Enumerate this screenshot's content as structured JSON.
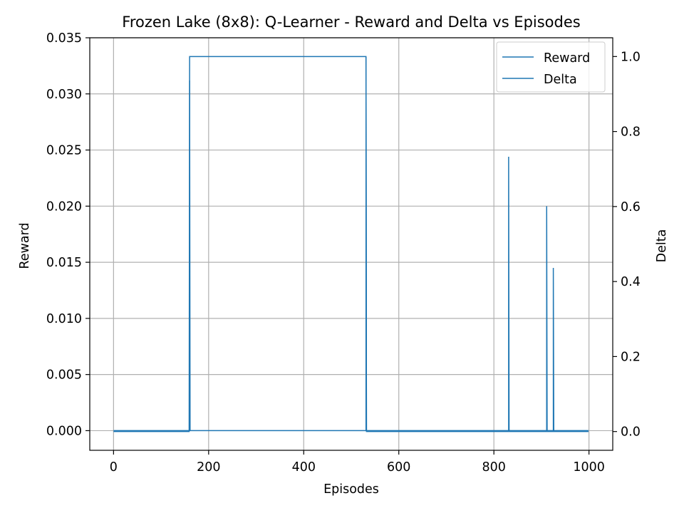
{
  "chart_data": {
    "type": "line",
    "title": "Frozen Lake (8x8): Q-Learner - Reward and Delta vs Episodes",
    "xlabel": "Episodes",
    "ylabel": "Reward",
    "ylabel_right": "Delta",
    "xlim": [
      -50,
      1050
    ],
    "ylim": [
      -0.00175,
      0.035
    ],
    "ylim_right": [
      -0.05,
      1.05
    ],
    "xticks": [
      0,
      200,
      400,
      600,
      800,
      1000
    ],
    "xtick_labels": [
      "0",
      "200",
      "400",
      "600",
      "800",
      "1000"
    ],
    "yticks": [
      0.0,
      0.005,
      0.01,
      0.015,
      0.02,
      0.025,
      0.03,
      0.035
    ],
    "ytick_labels": [
      "0.000",
      "0.005",
      "0.010",
      "0.015",
      "0.020",
      "0.025",
      "0.030",
      "0.035"
    ],
    "yticks_right": [
      0.0,
      0.2,
      0.4,
      0.6,
      0.8,
      1.0
    ],
    "ytick_labels_right": [
      "0.0",
      "0.2",
      "0.4",
      "0.6",
      "0.8",
      "1.0"
    ],
    "grid": true,
    "legend_position": "top-right",
    "series": [
      {
        "name": "Reward",
        "axis": "left",
        "color": "#1f77b4",
        "x": [
          0,
          159,
          160,
          160,
          161,
          530,
          531,
          531,
          532,
          830,
          831,
          831,
          832,
          910,
          911,
          911,
          912,
          924,
          925,
          925,
          926,
          999
        ],
        "y": [
          0,
          0,
          0,
          0.0312,
          0,
          0,
          0,
          0.0333,
          0,
          0,
          0,
          0.0244,
          0,
          0,
          0,
          0.02,
          0,
          0,
          0,
          0.0145,
          0,
          0
        ]
      },
      {
        "name": "Delta",
        "axis": "right",
        "color": "#1f77b4",
        "x": [
          0,
          159,
          160,
          161,
          531,
          532,
          999
        ],
        "y": [
          0,
          0,
          1,
          1,
          1,
          0,
          0
        ]
      }
    ]
  }
}
